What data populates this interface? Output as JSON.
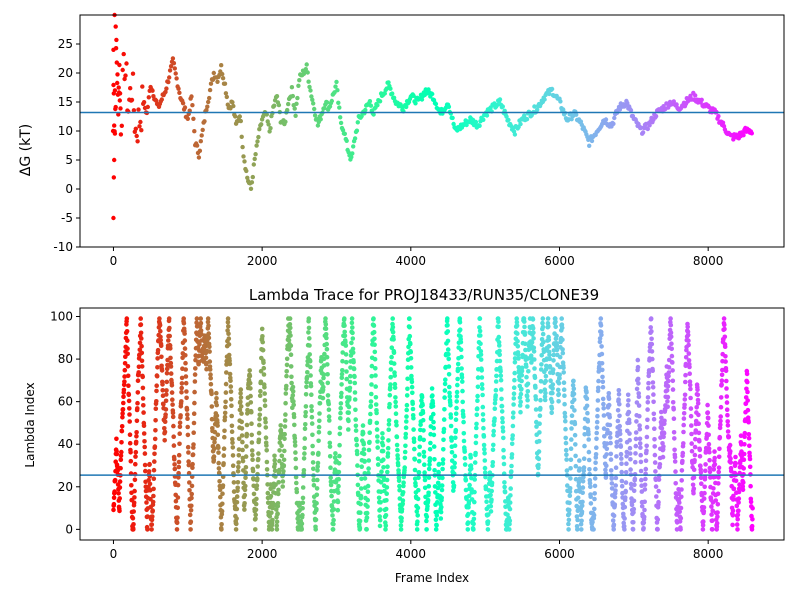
{
  "chart_data": [
    {
      "type": "scatter",
      "title": "",
      "xlabel": "",
      "ylabel": "ΔG (kT)",
      "xlim": [
        -450,
        9020
      ],
      "ylim": [
        -10,
        30
      ],
      "xticks": [
        0,
        2000,
        4000,
        6000,
        8000
      ],
      "yticks": [
        -10,
        -5,
        0,
        5,
        10,
        15,
        20,
        25
      ],
      "hline": 13.2,
      "hline_color": "#1f77b4",
      "colormap": "rainbow (early frames red/orange → late frames violet)",
      "series": [
        {
          "x": [
            0,
            20,
            40,
            60,
            80,
            100,
            150,
            200,
            250,
            300,
            350,
            400,
            450,
            500,
            600,
            700,
            800,
            850,
            900,
            950,
            1000,
            1050,
            1100,
            1150,
            1200,
            1250,
            1300,
            1350,
            1400,
            1450,
            1500,
            1550,
            1600,
            1650,
            1700,
            1750,
            1800,
            1850,
            1900,
            1950,
            2000,
            2050,
            2100,
            2150,
            2200,
            2250,
            2300,
            2350,
            2400,
            2450,
            2500,
            2550,
            2600,
            2650,
            2700,
            2750,
            2800,
            2850,
            2900,
            2950,
            3000,
            3050,
            3100,
            3150,
            3200,
            3250,
            3300,
            3350,
            3400,
            3450,
            3500,
            3600,
            3700,
            3800,
            3900,
            4000,
            4100,
            4200,
            4300,
            4400,
            4500,
            4600,
            4700,
            4800,
            4900,
            5000,
            5100,
            5200,
            5300,
            5400,
            5500,
            5600,
            5700,
            5800,
            5900,
            6000,
            6100,
            6200,
            6300,
            6400,
            6500,
            6600,
            6700,
            6800,
            6900,
            7000,
            7100,
            7200,
            7300,
            7400,
            7500,
            7600,
            7700,
            7800,
            7900,
            8000,
            8100,
            8200,
            8300,
            8400,
            8500,
            8600
          ],
          "y": [
            18,
            10,
            25,
            15,
            20,
            12,
            22,
            14,
            18,
            10,
            12,
            15,
            13,
            18,
            14,
            17,
            22,
            19,
            16,
            14,
            12,
            16,
            8,
            6,
            10,
            14,
            17,
            20,
            19,
            21,
            18,
            14,
            15,
            11,
            13,
            6,
            2,
            0,
            5,
            9,
            12,
            13,
            10,
            14,
            16,
            12,
            11,
            15,
            17,
            13,
            19,
            20,
            21,
            17,
            14,
            11,
            13,
            15,
            14,
            16,
            18,
            12,
            10,
            7,
            5,
            9,
            12,
            13,
            14,
            15,
            13,
            16,
            18,
            15,
            14,
            16,
            15,
            17,
            16,
            13,
            15,
            10,
            11,
            12,
            11,
            13,
            14,
            15,
            12,
            10,
            12,
            13,
            14,
            16,
            17,
            15,
            12,
            13,
            11,
            8,
            10,
            12,
            11,
            14,
            15,
            12,
            10,
            11,
            13,
            14,
            15,
            14,
            15,
            16,
            15,
            14,
            13,
            11,
            9,
            9,
            10,
            10
          ]
        }
      ]
    },
    {
      "type": "scatter",
      "title": "Lambda Trace for PROJ18433/RUN35/CLONE39",
      "xlabel": "Frame Index",
      "ylabel": "Lambda Index",
      "xlim": [
        -450,
        9020
      ],
      "ylim": [
        -5,
        104
      ],
      "xticks": [
        0,
        2000,
        4000,
        6000,
        8000
      ],
      "yticks": [
        0,
        20,
        40,
        60,
        80,
        100
      ],
      "hline": 25.5,
      "hline_color": "#1f77b4",
      "colormap": "rainbow (early frames red/orange → late frames violet)",
      "frame_range": [
        0,
        8600
      ],
      "value_range": [
        0,
        99
      ]
    }
  ]
}
